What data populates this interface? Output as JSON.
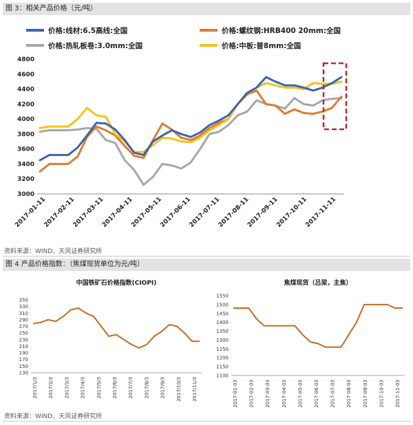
{
  "fig3": {
    "header": "图 3：相关产品价格（元/吨）",
    "source": "资料来源：WIND、天风证券研究所"
  },
  "fig4": {
    "header": "图 4 产品价格指数：（焦煤现货单位为元/吨）",
    "source": "资料来源：WIND、天风证券研究所"
  },
  "chart_data": [
    {
      "type": "line",
      "title": "",
      "xlabel": "",
      "ylabel": "",
      "ylim": [
        3000,
        4800
      ],
      "yticks": [
        3000,
        3200,
        3400,
        3600,
        3800,
        4000,
        4200,
        4400,
        4600,
        4800
      ],
      "xticks": [
        "2017-01-11",
        "2017-02-11",
        "2017-03-11",
        "2017-04-11",
        "2017-05-11",
        "2017-06-11",
        "2017-07-11",
        "2017-08-11",
        "2017-09-11",
        "2017-10-11",
        "2017-11-11"
      ],
      "grid": false,
      "legend_position": "top",
      "highlight_box": "dashed red box around final weeks",
      "x": [
        "2017-01-11",
        "2017-01-21",
        "2017-02-01",
        "2017-02-11",
        "2017-02-21",
        "2017-03-01",
        "2017-03-11",
        "2017-03-21",
        "2017-04-01",
        "2017-04-11",
        "2017-04-21",
        "2017-05-01",
        "2017-05-11",
        "2017-05-21",
        "2017-06-01",
        "2017-06-11",
        "2017-06-21",
        "2017-07-01",
        "2017-07-11",
        "2017-07-21",
        "2017-08-01",
        "2017-08-11",
        "2017-08-21",
        "2017-09-01",
        "2017-09-11",
        "2017-09-21",
        "2017-10-01",
        "2017-10-11",
        "2017-10-21",
        "2017-11-01",
        "2017-11-11",
        "2017-11-21",
        "2017-11-30"
      ],
      "series": [
        {
          "name": "价格:线材:6.5高线:全国",
          "color": "#3a64b0",
          "values": [
            3450,
            3520,
            3520,
            3520,
            3620,
            3780,
            3950,
            3940,
            3860,
            3720,
            3550,
            3520,
            3700,
            3780,
            3850,
            3800,
            3760,
            3820,
            3920,
            3980,
            4050,
            4200,
            4350,
            4420,
            4560,
            4500,
            4450,
            4450,
            4420,
            4380,
            4420,
            4480,
            4560
          ]
        },
        {
          "name": "价格:螺纹钢:HRB400 20mm:全国",
          "color": "#e07b2d",
          "values": [
            3300,
            3400,
            3400,
            3400,
            3500,
            3760,
            3900,
            3850,
            3780,
            3640,
            3510,
            3480,
            3720,
            3940,
            3860,
            3750,
            3720,
            3780,
            3880,
            3950,
            4000,
            4200,
            4330,
            4380,
            4200,
            4180,
            4070,
            4130,
            4080,
            4070,
            4100,
            4150,
            4300
          ]
        },
        {
          "name": "价格:热轧板卷:3.0mm:全国",
          "color": "#a6a6a6",
          "values": [
            3830,
            3850,
            3850,
            3850,
            3860,
            3880,
            3870,
            3720,
            3680,
            3450,
            3320,
            3120,
            3230,
            3400,
            3380,
            3340,
            3420,
            3600,
            3800,
            3830,
            3920,
            4050,
            4100,
            4250,
            4200,
            4180,
            4140,
            4280,
            4200,
            4180,
            4250,
            4270,
            4280
          ]
        },
        {
          "name": "价格:中板:普8mm:全国",
          "color": "#f5c216",
          "values": [
            3880,
            3900,
            3900,
            3900,
            4000,
            4150,
            4050,
            4030,
            3800,
            3700,
            3560,
            3560,
            3650,
            3750,
            3740,
            3700,
            3690,
            3750,
            3850,
            3920,
            4000,
            4200,
            4350,
            4420,
            4480,
            4450,
            4420,
            4420,
            4400,
            4480,
            4470,
            4470,
            4500
          ]
        }
      ]
    },
    {
      "type": "line",
      "title": "中国铁矿石价格指数(CIOPI)",
      "xlabel": "",
      "ylabel": "",
      "ylim": [
        130,
        350
      ],
      "yticks": [
        130,
        150,
        170,
        190,
        210,
        230,
        250,
        270,
        290,
        310,
        330,
        350
      ],
      "xticks": [
        "2017/1/3",
        "2017/2/3",
        "2017/3/3",
        "2017/4/3",
        "2017/5/3",
        "2017/6/3",
        "2017/7/3",
        "2017/8/3",
        "2017/9/3",
        "2017/10/3",
        "2017/11/3"
      ],
      "grid": false,
      "x": [
        "2017/1/3",
        "2017/1/18",
        "2017/2/3",
        "2017/2/18",
        "2017/3/3",
        "2017/3/18",
        "2017/4/3",
        "2017/4/18",
        "2017/5/3",
        "2017/5/18",
        "2017/6/3",
        "2017/6/18",
        "2017/7/3",
        "2017/7/18",
        "2017/8/3",
        "2017/8/18",
        "2017/9/3",
        "2017/9/18",
        "2017/10/3",
        "2017/10/18",
        "2017/11/3",
        "2017/11/18",
        "2017/11/30"
      ],
      "series": [
        {
          "name": "",
          "color": "#c56a1f",
          "values": [
            278,
            282,
            290,
            285,
            300,
            320,
            325,
            310,
            300,
            270,
            240,
            245,
            230,
            215,
            205,
            215,
            240,
            255,
            275,
            270,
            250,
            225,
            225
          ]
        }
      ]
    },
    {
      "type": "line",
      "title": "焦煤现货（吕梁，主焦）",
      "xlabel": "",
      "ylabel": "",
      "ylim": [
        1100,
        1550
      ],
      "yticks": [
        1100,
        1150,
        1200,
        1250,
        1300,
        1350,
        1400,
        1450,
        1500,
        1550
      ],
      "xticks": [
        "2017-01-03",
        "2017-02-03",
        "2017-03-03",
        "2017-04-03",
        "2017-05-03",
        "2017-06-03",
        "2017-07-03",
        "2017-08-03",
        "2017-09-03",
        "2017-10-03",
        "2017-11-03"
      ],
      "grid": false,
      "x": [
        "2017-01-03",
        "2017-01-18",
        "2017-02-03",
        "2017-02-18",
        "2017-03-03",
        "2017-03-18",
        "2017-04-03",
        "2017-04-18",
        "2017-05-03",
        "2017-05-18",
        "2017-06-03",
        "2017-06-18",
        "2017-07-03",
        "2017-07-18",
        "2017-08-03",
        "2017-08-18",
        "2017-09-03",
        "2017-09-18",
        "2017-10-03",
        "2017-10-18",
        "2017-11-03",
        "2017-11-18",
        "2017-11-30"
      ],
      "series": [
        {
          "name": "",
          "color": "#c56a1f",
          "values": [
            1480,
            1480,
            1480,
            1420,
            1380,
            1380,
            1380,
            1380,
            1380,
            1330,
            1290,
            1280,
            1260,
            1260,
            1260,
            1330,
            1400,
            1500,
            1500,
            1500,
            1500,
            1480,
            1480
          ]
        }
      ]
    }
  ]
}
